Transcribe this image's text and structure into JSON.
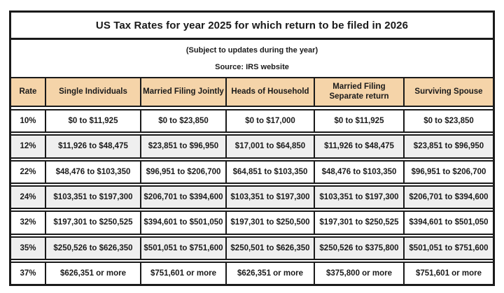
{
  "title": "US Tax Rates for year 2025 for which return to be filed in 2026",
  "subtitle": "(Subject to updates during the year)",
  "source": "Source: IRS website",
  "colors": {
    "header_bg": "#f5d4a9",
    "alt_row_bg": "#efefef",
    "border": "#1a1a1a",
    "text": "#1a1a1a",
    "page_bg": "#ffffff"
  },
  "table": {
    "headers": [
      "Rate",
      "Single Individuals",
      "Married Filing Jointly",
      "Heads of Household",
      "Married Filing Separate return",
      "Surviving Spouse"
    ],
    "rows": [
      {
        "rate": "10%",
        "cells": [
          "$0 to $11,925",
          "$0 to $23,850",
          "$0 to $17,000",
          "$0 to $11,925",
          "$0 to $23,850"
        ]
      },
      {
        "rate": "12%",
        "cells": [
          "$11,926 to $48,475",
          "$23,851 to $96,950",
          "$17,001 to $64,850",
          "$11,926 to $48,475",
          "$23,851 to $96,950"
        ]
      },
      {
        "rate": "22%",
        "cells": [
          "$48,476 to $103,350",
          "$96,951 to $206,700",
          "$64,851 to $103,350",
          "$48,476 to $103,350",
          "$96,951 to $206,700"
        ]
      },
      {
        "rate": "24%",
        "cells": [
          "$103,351 to $197,300",
          "$206,701 to $394,600",
          "$103,351 to $197,300",
          "$103,351 to $197,300",
          "$206,701 to $394,600"
        ]
      },
      {
        "rate": "32%",
        "cells": [
          "$197,301 to $250,525",
          "$394,601 to $501,050",
          "$197,301 to $250,500",
          "$197,301 to $250,525",
          "$394,601 to $501,050"
        ]
      },
      {
        "rate": "35%",
        "cells": [
          "$250,526 to $626,350",
          "$501,051 to $751,600",
          "$250,501 to $626,350",
          "$250,526 to $375,800",
          "$501,051 to $751,600"
        ]
      },
      {
        "rate": "37%",
        "cells": [
          "$626,351 or more",
          "$751,601 or more",
          "$626,351 or more",
          "$375,800 or more",
          "$751,601 or more"
        ]
      }
    ]
  },
  "chart_data": {
    "type": "table",
    "title": "US Tax Rates for year 2025 for which return to be filed in 2026",
    "columns": [
      "Rate",
      "Single Individuals",
      "Married Filing Jointly",
      "Heads of Household",
      "Married Filing Separate return",
      "Surviving Spouse"
    ],
    "rows": [
      [
        "10%",
        "$0 to $11,925",
        "$0 to $23,850",
        "$0 to $17,000",
        "$0 to $11,925",
        "$0 to $23,850"
      ],
      [
        "12%",
        "$11,926 to $48,475",
        "$23,851 to $96,950",
        "$17,001 to $64,850",
        "$11,926 to $48,475",
        "$23,851 to $96,950"
      ],
      [
        "22%",
        "$48,476 to $103,350",
        "$96,951 to $206,700",
        "$64,851 to $103,350",
        "$48,476 to $103,350",
        "$96,951 to $206,700"
      ],
      [
        "24%",
        "$103,351 to $197,300",
        "$206,701 to $394,600",
        "$103,351 to $197,300",
        "$103,351 to $197,300",
        "$206,701 to $394,600"
      ],
      [
        "32%",
        "$197,301 to $250,525",
        "$394,601 to $501,050",
        "$197,301 to $250,500",
        "$197,301 to $250,525",
        "$394,601 to $501,050"
      ],
      [
        "35%",
        "$250,526 to $626,350",
        "$501,051 to $751,600",
        "$250,501 to $626,350",
        "$250,526 to $375,800",
        "$501,051 to $751,600"
      ],
      [
        "37%",
        "$626,351 or more",
        "$751,601 or more",
        "$626,351 or more",
        "$375,800 or more",
        "$751,601 or more"
      ]
    ]
  }
}
